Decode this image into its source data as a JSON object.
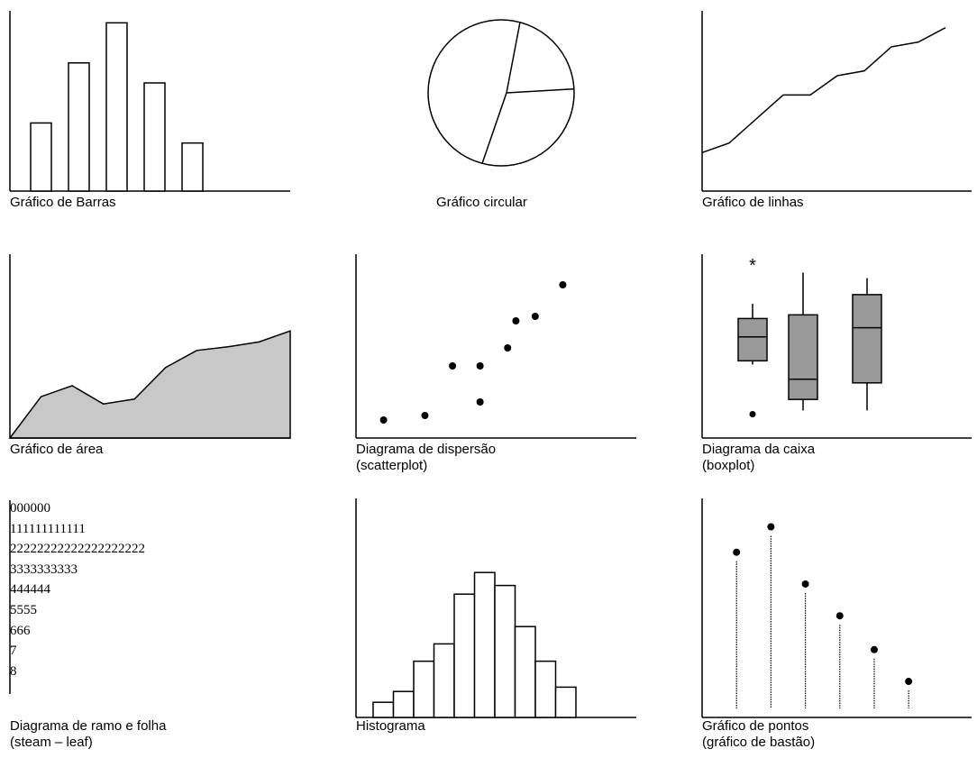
{
  "labels": {
    "bar": "Gráfico de Barras",
    "pie": "Gráfico circular",
    "line": "Gráfico de linhas",
    "area": "Gráfico de área",
    "scatter_1": "Diagrama de dispersão",
    "scatter_2": "(scatterplot)",
    "box_1": "Diagrama da caixa",
    "box_2": "(boxplot)",
    "stem_1": "Diagrama de ramo e folha",
    "stem_2": "(steam – leaf)",
    "hist": "Histograma",
    "dot_1": "Gráfico de pontos",
    "dot_2": "(gráfico de bastão)"
  },
  "stem_leaf": {
    "rows": [
      "000000",
      "111111111111",
      "22222222222222222222",
      "3333333333",
      "444444",
      "5555",
      "666",
      "7",
      "8"
    ]
  },
  "chart_data": [
    {
      "type": "bar",
      "values": [
        34,
        64,
        84,
        54,
        24
      ],
      "ylim": [
        0,
        90
      ]
    },
    {
      "type": "pie",
      "slices": [
        20,
        30,
        50
      ]
    },
    {
      "type": "line",
      "x": [
        0,
        1,
        2,
        3,
        4,
        5,
        6,
        7,
        8,
        9
      ],
      "values": [
        16,
        20,
        30,
        40,
        40,
        48,
        50,
        60,
        62,
        68
      ],
      "xlim": [
        0,
        10
      ],
      "ylim": [
        0,
        75
      ]
    },
    {
      "type": "area",
      "x": [
        0,
        1,
        2,
        3,
        4,
        5,
        6,
        7,
        8,
        9
      ],
      "values": [
        0,
        34,
        43,
        28,
        32,
        58,
        72,
        75,
        79,
        88
      ],
      "xlim": [
        0,
        9
      ],
      "ylim": [
        0,
        100
      ]
    },
    {
      "type": "scatter",
      "points": [
        [
          1,
          2
        ],
        [
          2.5,
          2.5
        ],
        [
          3.5,
          8
        ],
        [
          4.5,
          4
        ],
        [
          4.5,
          8
        ],
        [
          5.5,
          10
        ],
        [
          5.8,
          13
        ],
        [
          6.5,
          13.5
        ],
        [
          7.5,
          17
        ]
      ],
      "xlim": [
        0,
        8.5
      ],
      "ylim": [
        0,
        20
      ]
    },
    {
      "type": "boxplot",
      "boxes": [
        {
          "whisker_low": 40,
          "q1": 42,
          "median": 55,
          "q3": 65,
          "whisker_high": 73,
          "outliers_low": [
            13
          ],
          "outliers_high": [
            95
          ]
        },
        {
          "whisker_low": 15,
          "q1": 21,
          "median": 32,
          "q3": 67,
          "whisker_high": 90,
          "outliers_low": [],
          "outliers_high": []
        },
        {
          "whisker_low": 15,
          "q1": 30,
          "median": 60,
          "q3": 78,
          "whisker_high": 87,
          "outliers_low": [],
          "outliers_high": []
        }
      ],
      "ylim": [
        0,
        100
      ],
      "outlier_marker": "*"
    },
    {
      "type": "bar",
      "subtype": "histogram",
      "values": [
        7,
        12,
        26,
        34,
        57,
        67,
        61,
        42,
        26,
        14
      ],
      "ylim": [
        0,
        100
      ]
    },
    {
      "type": "scatter",
      "subtype": "stick",
      "points": [
        [
          1,
          78
        ],
        [
          2,
          90
        ],
        [
          3,
          63
        ],
        [
          4,
          48
        ],
        [
          5,
          32
        ],
        [
          6,
          17
        ]
      ],
      "xlim": [
        0,
        7.2
      ],
      "ylim": [
        0,
        100
      ]
    }
  ]
}
